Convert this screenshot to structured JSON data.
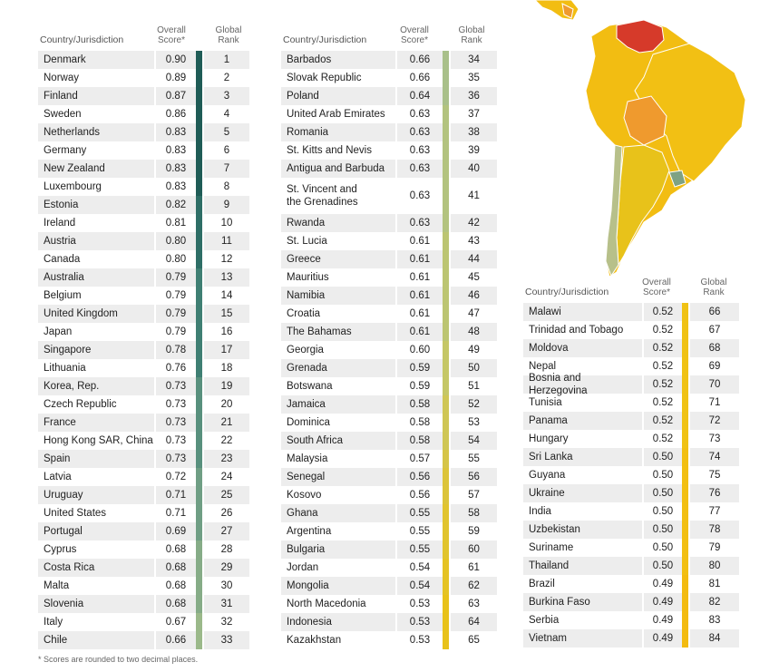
{
  "headers": {
    "country": "Country/Jurisdiction",
    "score_1": "Overall",
    "score_2": "Score*",
    "rank_1": "Global",
    "rank_2": "Rank"
  },
  "footnote": "*   Scores are rounded to two decimal places.",
  "colors": {
    "dark": "#1f5c56",
    "teal": "#3f7f73",
    "green": "#6f9e84",
    "light": "#a9c08a",
    "lime": "#c5c766",
    "yellow": "#e8c21a"
  },
  "map": {
    "region": "South America",
    "country_colors": {
      "venezuela": "#d63a2a",
      "bolivia": "#ef9a2e",
      "uruguay": "#7fa283",
      "chile": "#b7c08a",
      "default": "#f2bd12"
    }
  },
  "table1": [
    {
      "name": "Denmark",
      "score": "0.90",
      "rank": "1",
      "color": "#1f5c56"
    },
    {
      "name": "Norway",
      "score": "0.89",
      "rank": "2",
      "color": "#1f5c56"
    },
    {
      "name": "Finland",
      "score": "0.87",
      "rank": "3",
      "color": "#1f5c56"
    },
    {
      "name": "Sweden",
      "score": "0.86",
      "rank": "4",
      "color": "#1f5c56"
    },
    {
      "name": "Netherlands",
      "score": "0.83",
      "rank": "5",
      "color": "#1f5c56"
    },
    {
      "name": "Germany",
      "score": "0.83",
      "rank": "6",
      "color": "#1f5c56"
    },
    {
      "name": "New Zealand",
      "score": "0.83",
      "rank": "7",
      "color": "#1f5c56"
    },
    {
      "name": "Luxembourg",
      "score": "0.83",
      "rank": "8",
      "color": "#1f5c56"
    },
    {
      "name": "Estonia",
      "score": "0.82",
      "rank": "9",
      "color": "#2e6e66"
    },
    {
      "name": "Ireland",
      "score": "0.81",
      "rank": "10",
      "color": "#2e6e66"
    },
    {
      "name": "Austria",
      "score": "0.80",
      "rank": "11",
      "color": "#2e6e66"
    },
    {
      "name": "Canada",
      "score": "0.80",
      "rank": "12",
      "color": "#2e6e66"
    },
    {
      "name": "Australia",
      "score": "0.79",
      "rank": "13",
      "color": "#3f7f73"
    },
    {
      "name": "Belgium",
      "score": "0.79",
      "rank": "14",
      "color": "#3f7f73"
    },
    {
      "name": "United Kingdom",
      "score": "0.79",
      "rank": "15",
      "color": "#3f7f73"
    },
    {
      "name": "Japan",
      "score": "0.79",
      "rank": "16",
      "color": "#3f7f73"
    },
    {
      "name": "Singapore",
      "score": "0.78",
      "rank": "17",
      "color": "#3f7f73"
    },
    {
      "name": "Lithuania",
      "score": "0.76",
      "rank": "18",
      "color": "#3f7f73"
    },
    {
      "name": "Korea, Rep.",
      "score": "0.73",
      "rank": "19",
      "color": "#58907d"
    },
    {
      "name": "Czech Republic",
      "score": "0.73",
      "rank": "20",
      "color": "#58907d"
    },
    {
      "name": "France",
      "score": "0.73",
      "rank": "21",
      "color": "#58907d"
    },
    {
      "name": "Hong Kong SAR, China",
      "score": "0.73",
      "rank": "22",
      "color": "#58907d"
    },
    {
      "name": "Spain",
      "score": "0.73",
      "rank": "23",
      "color": "#58907d"
    },
    {
      "name": "Latvia",
      "score": "0.72",
      "rank": "24",
      "color": "#6f9e84"
    },
    {
      "name": "Uruguay",
      "score": "0.71",
      "rank": "25",
      "color": "#6f9e84"
    },
    {
      "name": "United States",
      "score": "0.71",
      "rank": "26",
      "color": "#6f9e84"
    },
    {
      "name": "Portugal",
      "score": "0.69",
      "rank": "27",
      "color": "#6f9e84"
    },
    {
      "name": "Cyprus",
      "score": "0.68",
      "rank": "28",
      "color": "#86ac87"
    },
    {
      "name": "Costa Rica",
      "score": "0.68",
      "rank": "29",
      "color": "#86ac87"
    },
    {
      "name": "Malta",
      "score": "0.68",
      "rank": "30",
      "color": "#86ac87"
    },
    {
      "name": "Slovenia",
      "score": "0.68",
      "rank": "31",
      "color": "#86ac87"
    },
    {
      "name": "Italy",
      "score": "0.67",
      "rank": "32",
      "color": "#9bb98a"
    },
    {
      "name": "Chile",
      "score": "0.66",
      "rank": "33",
      "color": "#9bb98a"
    }
  ],
  "table2": [
    {
      "name": "Barbados",
      "score": "0.66",
      "rank": "34",
      "color": "#a9c08a"
    },
    {
      "name": "Slovak Republic",
      "score": "0.66",
      "rank": "35",
      "color": "#a9c08a"
    },
    {
      "name": "Poland",
      "score": "0.64",
      "rank": "36",
      "color": "#a9c08a"
    },
    {
      "name": "United Arab Emirates",
      "score": "0.63",
      "rank": "37",
      "color": "#b3c37f"
    },
    {
      "name": "Romania",
      "score": "0.63",
      "rank": "38",
      "color": "#b3c37f"
    },
    {
      "name": "St. Kitts and Nevis",
      "score": "0.63",
      "rank": "39",
      "color": "#b3c37f"
    },
    {
      "name": "Antigua and Barbuda",
      "score": "0.63",
      "rank": "40",
      "color": "#b3c37f"
    },
    {
      "name": "St. Vincent and\nthe Grenadines",
      "score": "0.63",
      "rank": "41",
      "color": "#b3c37f",
      "tall": true
    },
    {
      "name": "Rwanda",
      "score": "0.63",
      "rank": "42",
      "color": "#b3c37f"
    },
    {
      "name": "St. Lucia",
      "score": "0.61",
      "rank": "43",
      "color": "#bcc572"
    },
    {
      "name": "Greece",
      "score": "0.61",
      "rank": "44",
      "color": "#bcc572"
    },
    {
      "name": "Mauritius",
      "score": "0.61",
      "rank": "45",
      "color": "#bcc572"
    },
    {
      "name": "Namibia",
      "score": "0.61",
      "rank": "46",
      "color": "#bcc572"
    },
    {
      "name": "Croatia",
      "score": "0.61",
      "rank": "47",
      "color": "#bcc572"
    },
    {
      "name": "The Bahamas",
      "score": "0.61",
      "rank": "48",
      "color": "#bcc572"
    },
    {
      "name": "Georgia",
      "score": "0.60",
      "rank": "49",
      "color": "#c5c766"
    },
    {
      "name": "Grenada",
      "score": "0.59",
      "rank": "50",
      "color": "#c5c766"
    },
    {
      "name": "Botswana",
      "score": "0.59",
      "rank": "51",
      "color": "#c5c766"
    },
    {
      "name": "Jamaica",
      "score": "0.58",
      "rank": "52",
      "color": "#cfc655"
    },
    {
      "name": "Dominica",
      "score": "0.58",
      "rank": "53",
      "color": "#cfc655"
    },
    {
      "name": "South Africa",
      "score": "0.58",
      "rank": "54",
      "color": "#cfc655"
    },
    {
      "name": "Malaysia",
      "score": "0.57",
      "rank": "55",
      "color": "#d6c548"
    },
    {
      "name": "Senegal",
      "score": "0.56",
      "rank": "56",
      "color": "#dcc43a"
    },
    {
      "name": "Kosovo",
      "score": "0.56",
      "rank": "57",
      "color": "#dcc43a"
    },
    {
      "name": "Ghana",
      "score": "0.55",
      "rank": "58",
      "color": "#e1c42e"
    },
    {
      "name": "Argentina",
      "score": "0.55",
      "rank": "59",
      "color": "#e1c42e"
    },
    {
      "name": "Bulgaria",
      "score": "0.55",
      "rank": "60",
      "color": "#e1c42e"
    },
    {
      "name": "Jordan",
      "score": "0.54",
      "rank": "61",
      "color": "#e5c324"
    },
    {
      "name": "Mongolia",
      "score": "0.54",
      "rank": "62",
      "color": "#e5c324"
    },
    {
      "name": "North Macedonia",
      "score": "0.53",
      "rank": "63",
      "color": "#e8c21a"
    },
    {
      "name": "Indonesia",
      "score": "0.53",
      "rank": "64",
      "color": "#e8c21a"
    },
    {
      "name": "Kazakhstan",
      "score": "0.53",
      "rank": "65",
      "color": "#e8c21a"
    }
  ],
  "table3": [
    {
      "name": "Malawi",
      "score": "0.52",
      "rank": "66",
      "color": "#f0c214"
    },
    {
      "name": "Trinidad and Tobago",
      "score": "0.52",
      "rank": "67",
      "color": "#f0c214"
    },
    {
      "name": "Moldova",
      "score": "0.52",
      "rank": "68",
      "color": "#f0c214"
    },
    {
      "name": "Nepal",
      "score": "0.52",
      "rank": "69",
      "color": "#f0c214"
    },
    {
      "name": "Bosnia and Herzegovina",
      "score": "0.52",
      "rank": "70",
      "color": "#f0c214"
    },
    {
      "name": "Tunisia",
      "score": "0.52",
      "rank": "71",
      "color": "#f0c214"
    },
    {
      "name": "Panama",
      "score": "0.52",
      "rank": "72",
      "color": "#f0c214"
    },
    {
      "name": "Hungary",
      "score": "0.52",
      "rank": "73",
      "color": "#f0c214"
    },
    {
      "name": "Sri Lanka",
      "score": "0.50",
      "rank": "74",
      "color": "#f2bf12"
    },
    {
      "name": "Guyana",
      "score": "0.50",
      "rank": "75",
      "color": "#f2bf12"
    },
    {
      "name": "Ukraine",
      "score": "0.50",
      "rank": "76",
      "color": "#f2bf12"
    },
    {
      "name": "India",
      "score": "0.50",
      "rank": "77",
      "color": "#f2bf12"
    },
    {
      "name": "Uzbekistan",
      "score": "0.50",
      "rank": "78",
      "color": "#f2bf12"
    },
    {
      "name": "Suriname",
      "score": "0.50",
      "rank": "79",
      "color": "#f2bf12"
    },
    {
      "name": "Thailand",
      "score": "0.50",
      "rank": "80",
      "color": "#f2bf12"
    },
    {
      "name": "Brazil",
      "score": "0.49",
      "rank": "81",
      "color": "#f3bb10"
    },
    {
      "name": "Burkina Faso",
      "score": "0.49",
      "rank": "82",
      "color": "#f3bb10"
    },
    {
      "name": "Serbia",
      "score": "0.49",
      "rank": "83",
      "color": "#f3bb10"
    },
    {
      "name": "Vietnam",
      "score": "0.49",
      "rank": "84",
      "color": "#f3bb10"
    }
  ]
}
